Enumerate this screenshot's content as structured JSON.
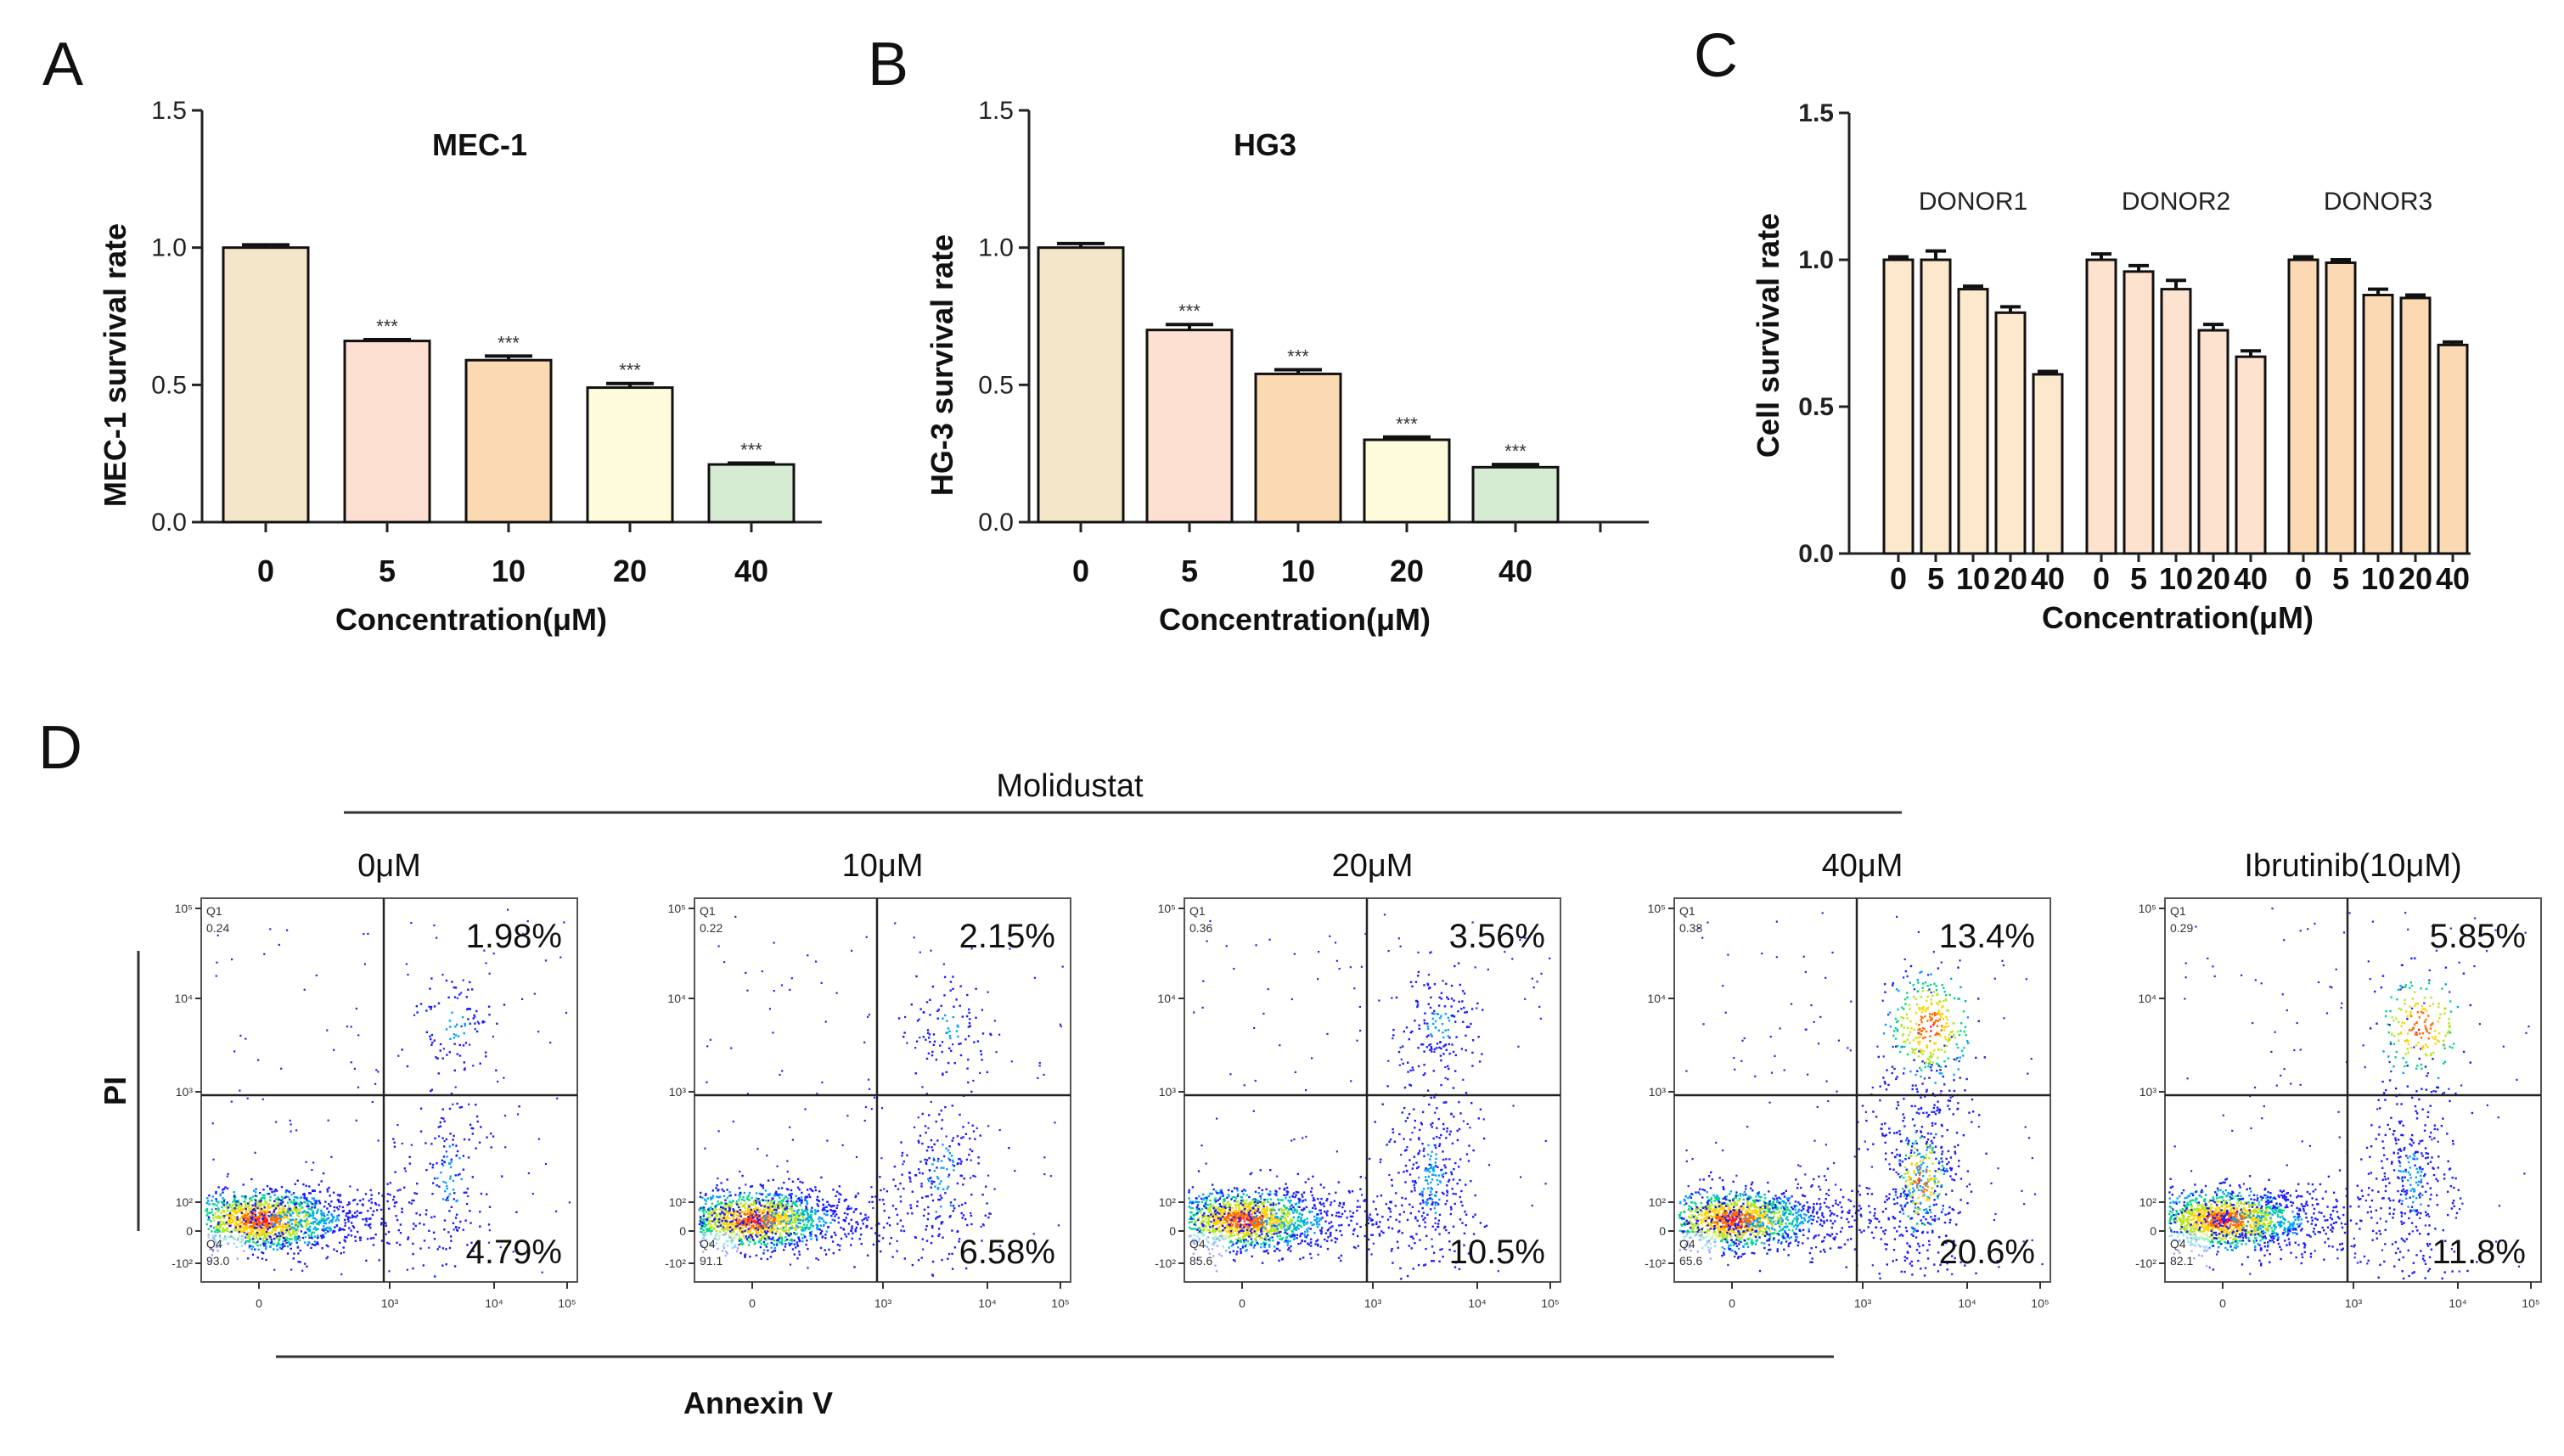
{
  "panels": {
    "A": "A",
    "B": "B",
    "C": "C",
    "D": "D"
  },
  "chart_data": [
    {
      "panel": "A",
      "type": "bar",
      "title": "MEC-1",
      "ylabel": "MEC-1 survival rate",
      "xlabel": "Concentration(μM)",
      "categories": [
        "0",
        "5",
        "10",
        "20",
        "40"
      ],
      "values": [
        1.0,
        0.66,
        0.59,
        0.49,
        0.21
      ],
      "errors": [
        0.01,
        0.005,
        0.015,
        0.015,
        0.005
      ],
      "significance": [
        "",
        "***",
        "***",
        "***",
        "***"
      ],
      "ylim": [
        0,
        1.5
      ],
      "yticks": [
        "0.0",
        "0.5",
        "1.0",
        "1.5"
      ],
      "colors": [
        "#f2e5c8",
        "#fde0d2",
        "#fbd9b2",
        "#fdfbdc",
        "#d5ebd2"
      ]
    },
    {
      "panel": "B",
      "type": "bar",
      "title": "HG3",
      "ylabel": "HG-3 survival rate",
      "xlabel": "Concentration(μM)",
      "categories": [
        "0",
        "5",
        "10",
        "20",
        "40"
      ],
      "values": [
        1.0,
        0.7,
        0.54,
        0.3,
        0.2
      ],
      "errors": [
        0.015,
        0.02,
        0.015,
        0.01,
        0.01
      ],
      "significance": [
        "",
        "***",
        "***",
        "***",
        "***"
      ],
      "ylim": [
        0,
        1.5
      ],
      "yticks": [
        "0.0",
        "0.5",
        "1.0",
        "1.5"
      ],
      "colors": [
        "#f2e5c8",
        "#fde0d2",
        "#fbd9b2",
        "#fdfbdc",
        "#d5ebd2"
      ]
    },
    {
      "panel": "C",
      "type": "bar",
      "ylabel": "Cell survival rate",
      "xlabel": "Concentration(μM)",
      "categories": [
        "0",
        "5",
        "10",
        "20",
        "40"
      ],
      "series": [
        {
          "name": "DONOR1",
          "values": [
            1.0,
            1.0,
            0.9,
            0.82,
            0.61
          ],
          "errors": [
            0.01,
            0.03,
            0.01,
            0.02,
            0.01
          ]
        },
        {
          "name": "DONOR2",
          "values": [
            1.0,
            0.96,
            0.9,
            0.76,
            0.67
          ],
          "errors": [
            0.02,
            0.02,
            0.03,
            0.02,
            0.02
          ]
        },
        {
          "name": "DONOR3",
          "values": [
            1.0,
            0.99,
            0.88,
            0.87,
            0.71
          ],
          "errors": [
            0.01,
            0.01,
            0.02,
            0.01,
            0.01
          ]
        }
      ],
      "ylim": [
        0,
        1.5
      ],
      "yticks": [
        "0.0",
        "0.5",
        "1.0",
        "1.5"
      ],
      "colors": [
        "#fce8cd",
        "#fde2cf",
        "#fbd9b2"
      ]
    },
    {
      "panel": "D",
      "type": "scatter",
      "group_label": "Molidustat",
      "xlabel": "Annexin V",
      "ylabel": "PI",
      "axis_ticks": {
        "x": [
          "0",
          "10³",
          "10⁴",
          "10⁵"
        ],
        "y": [
          "10⁵",
          "10⁴",
          "10³",
          "10²",
          "0",
          "-10²"
        ]
      },
      "quadrant_names": {
        "q1": "Q1",
        "q4": "Q4"
      },
      "plots": [
        {
          "condition": "0μM",
          "q1": "0.24",
          "q4": "93.0",
          "q2_pct": "1.98%",
          "q3_pct": "4.79%",
          "late_density": 0.4,
          "early_density": 0.6
        },
        {
          "condition": "10μM",
          "q1": "0.22",
          "q4": "91.1",
          "q2_pct": "2.15%",
          "q3_pct": "6.58%",
          "late_density": 0.45,
          "early_density": 0.8
        },
        {
          "condition": "20μM",
          "q1": "0.36",
          "q4": "85.6",
          "q2_pct": "3.56%",
          "q3_pct": "10.5%",
          "late_density": 0.7,
          "early_density": 1.2
        },
        {
          "condition": "40μM",
          "q1": "0.38",
          "q4": "65.6",
          "q2_pct": "13.4%",
          "q3_pct": "20.6%",
          "late_density": 1.5,
          "early_density": 2.0
        },
        {
          "condition": "Ibrutinib(10μM)",
          "q1": "0.29",
          "q4": "82.1",
          "q2_pct": "5.85%",
          "q3_pct": "11.8%",
          "late_density": 0.9,
          "early_density": 1.2
        }
      ]
    }
  ]
}
